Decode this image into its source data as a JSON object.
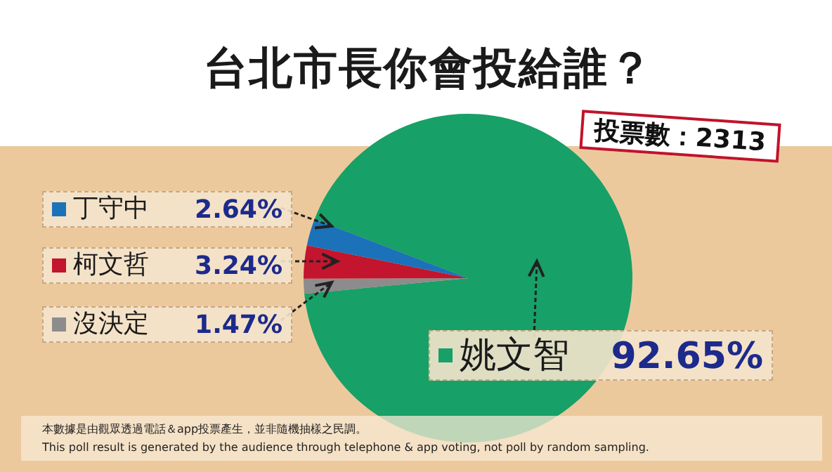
{
  "chart_data": {
    "type": "pie",
    "title": "台北市長你會投給誰？",
    "categories": [
      "姚文智",
      "沒決定",
      "柯文哲",
      "丁守中"
    ],
    "values": [
      92.65,
      1.47,
      3.24,
      2.64
    ],
    "colors": [
      "#17a067",
      "#8c8c8c",
      "#c3152d",
      "#1b72b8"
    ],
    "value_labels": [
      "92.65%",
      "1.47%",
      "3.24%",
      "2.64%"
    ],
    "legend": "left",
    "annotations": [
      "投票數：2313",
      "本數據是由觀眾透過電話＆app投票產生，並非隨機抽樣之民調。",
      "This poll result is generated by the audience through telephone & app voting, not poll by random sampling."
    ]
  }
}
